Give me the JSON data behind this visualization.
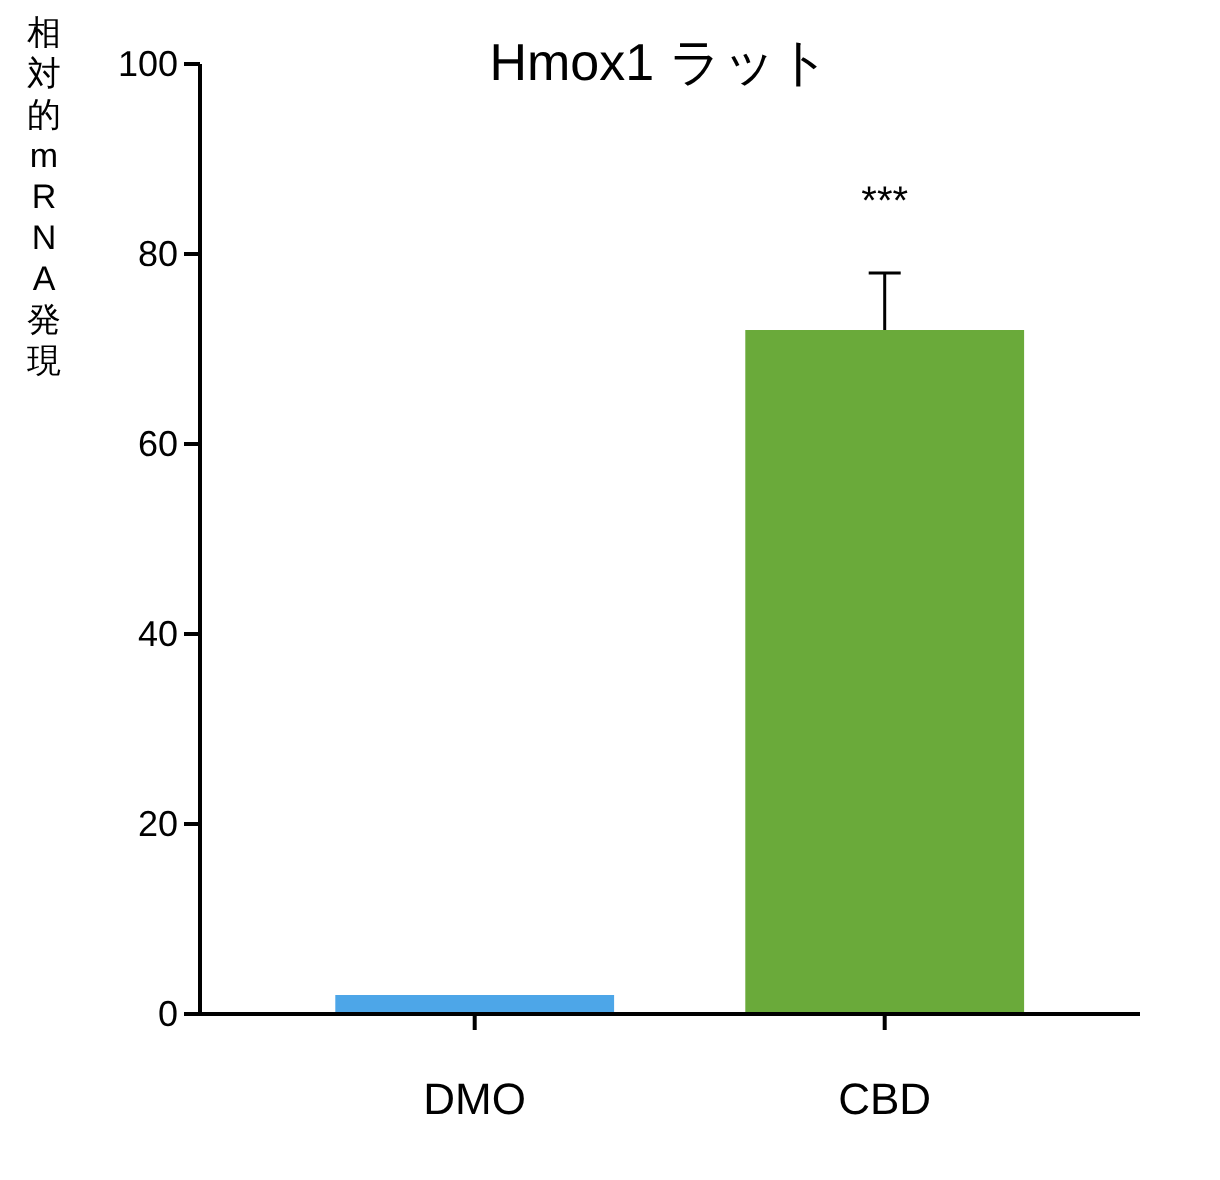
{
  "chart_data": {
    "type": "bar",
    "title": "Hmox1 ラット",
    "ylabel": "相対的mRNA発現",
    "categories": [
      "DMO",
      "CBD"
    ],
    "values": [
      2,
      72
    ],
    "colors": [
      "#4da6e8",
      "#6aaa3a"
    ],
    "errors": [
      null,
      6
    ],
    "ylim": [
      0,
      100
    ],
    "yticks": [
      0,
      20,
      40,
      60,
      80,
      100
    ],
    "grid": false,
    "annotations": [
      "***"
    ]
  }
}
